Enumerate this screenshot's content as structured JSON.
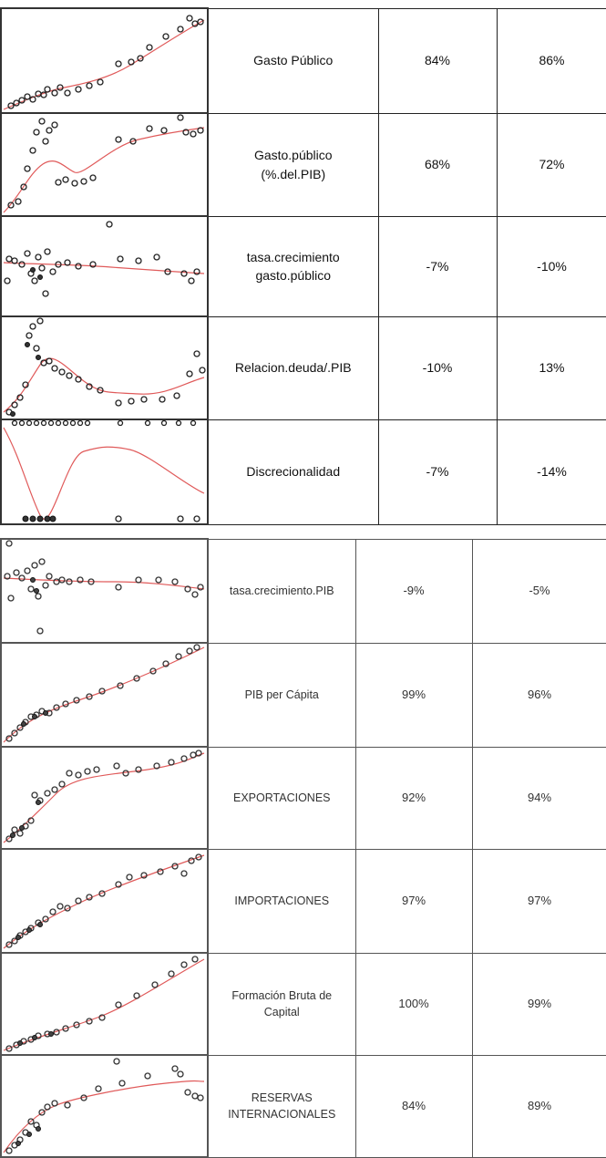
{
  "table_top": {
    "rows": [
      {
        "label": "Gasto Público",
        "value_1": "84%",
        "value_2": "86%"
      },
      {
        "label": "Gasto.público\n(%.del.PIB)",
        "value_1": "68%",
        "value_2": "72%"
      },
      {
        "label": "tasa.crecimiento\ngasto.público",
        "value_1": "-7%",
        "value_2": "-10%"
      },
      {
        "label": "Relacion.deuda/.PIB",
        "value_1": "-10%",
        "value_2": "13%"
      },
      {
        "label": "Discrecionalidad",
        "value_1": "-7%",
        "value_2": "-14%"
      }
    ]
  },
  "table_bottom": {
    "rows": [
      {
        "label": "tasa.crecimiento.PIB",
        "value_1": "-9%",
        "value_2": "-5%"
      },
      {
        "label": "PIB per Cápita",
        "value_1": "99%",
        "value_2": "96%"
      },
      {
        "label": "EXPORTACIONES",
        "value_1": "92%",
        "value_2": "94%"
      },
      {
        "label": "IMPORTACIONES",
        "value_1": "97%",
        "value_2": "97%"
      },
      {
        "label": "Formación Bruta de\nCapital",
        "value_1": "100%",
        "value_2": "99%"
      },
      {
        "label": "RESERVAS\nINTERNACIONALES",
        "value_1": "84%",
        "value_2": "89%"
      }
    ]
  },
  "colors": {
    "fit_line": "#e05a5a",
    "points": "#222222",
    "border": "#222222"
  }
}
